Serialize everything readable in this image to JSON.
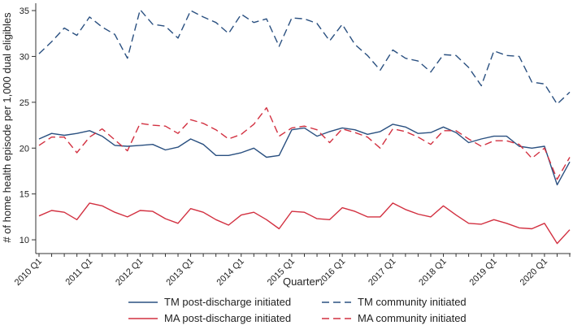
{
  "chart_data": {
    "type": "line",
    "title": "",
    "xlabel": "Quarter",
    "ylabel": "# of home health episode per 1,000 dual eligibles",
    "ylim": [
      8.5,
      35.8
    ],
    "yticks": [
      10,
      15,
      20,
      25,
      30,
      35
    ],
    "x_ticks": [
      "2010 Q1",
      "2011 Q1",
      "2012 Q1",
      "2013 Q1",
      "2014 Q1",
      "2015 Q1",
      "2016 Q1",
      "2017 Q1",
      "2018 Q1",
      "2019 Q1",
      "2020 Q1"
    ],
    "x_tick_index": [
      0,
      4,
      8,
      12,
      16,
      20,
      24,
      28,
      32,
      36,
      40
    ],
    "legend_position": "bottom",
    "series": [
      {
        "name": "TM post-discharge initiated",
        "color": "#2a5080",
        "dash": "solid",
        "values": [
          21.0,
          21.6,
          21.4,
          21.6,
          21.9,
          21.3,
          20.3,
          20.2,
          20.3,
          20.4,
          19.8,
          20.1,
          21.0,
          20.4,
          19.2,
          19.2,
          19.5,
          20.0,
          19.0,
          19.2,
          22.0,
          22.2,
          21.3,
          21.8,
          22.2,
          22.0,
          21.5,
          21.8,
          22.6,
          22.3,
          21.6,
          21.7,
          22.3,
          21.7,
          20.6,
          21.0,
          21.3,
          21.3,
          20.2,
          20.0,
          20.2,
          16.0,
          18.5
        ]
      },
      {
        "name": "TM community initiated",
        "color": "#2a5080",
        "dash": "dashed",
        "values": [
          30.3,
          31.6,
          33.1,
          32.3,
          34.3,
          33.2,
          32.4,
          29.8,
          35.1,
          33.5,
          33.3,
          32.0,
          35.0,
          34.3,
          33.7,
          32.5,
          34.6,
          33.7,
          34.1,
          31.1,
          34.2,
          34.1,
          33.6,
          31.7,
          33.5,
          31.3,
          30.1,
          28.5,
          30.7,
          29.8,
          29.5,
          28.3,
          30.2,
          30.1,
          28.8,
          26.8,
          30.6,
          30.1,
          30.0,
          27.2,
          27.0,
          24.8,
          26.1
        ]
      },
      {
        "name": "MA post-discharge initiated",
        "color": "#d23040",
        "dash": "solid",
        "values": [
          12.6,
          13.2,
          13.0,
          12.2,
          14.0,
          13.7,
          13.0,
          12.5,
          13.2,
          13.1,
          12.3,
          11.8,
          13.4,
          13.0,
          12.2,
          11.6,
          12.7,
          13.0,
          12.2,
          11.2,
          13.1,
          13.0,
          12.3,
          12.2,
          13.5,
          13.1,
          12.5,
          12.5,
          14.0,
          13.3,
          12.8,
          12.5,
          13.7,
          12.7,
          11.8,
          11.7,
          12.2,
          11.8,
          11.3,
          11.2,
          11.8,
          9.6,
          11.1
        ]
      },
      {
        "name": "MA community initiated",
        "color": "#d23040",
        "dash": "dashed",
        "values": [
          20.3,
          21.2,
          21.2,
          19.5,
          21.2,
          22.1,
          20.9,
          19.7,
          22.7,
          22.5,
          22.4,
          21.6,
          23.1,
          22.7,
          22.0,
          21.0,
          21.5,
          22.6,
          24.4,
          21.3,
          22.2,
          22.4,
          22.0,
          20.6,
          22.1,
          21.7,
          21.2,
          20.0,
          22.1,
          21.8,
          21.2,
          20.4,
          21.9,
          21.9,
          21.0,
          20.2,
          20.8,
          20.8,
          20.4,
          18.9,
          20.0,
          16.6,
          19.0
        ]
      }
    ]
  }
}
